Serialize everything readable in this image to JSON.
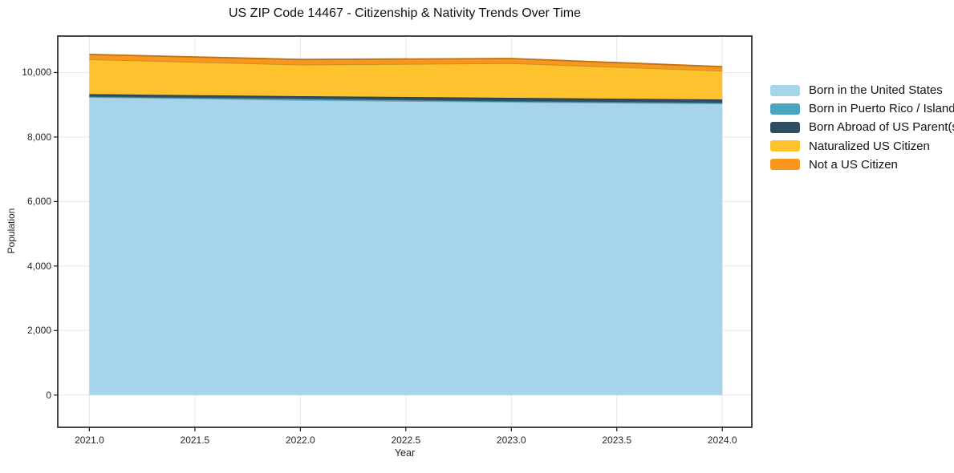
{
  "chart_data": {
    "type": "area",
    "stacked": true,
    "title": "US ZIP Code 14467 - Citizenship & Nativity Trends Over Time",
    "xlabel": "Year",
    "ylabel": "Population",
    "x": [
      2021,
      2022,
      2023,
      2024
    ],
    "series": [
      {
        "name": "Born in the United States",
        "color": "#a6d4ea",
        "values": [
          9240,
          9150,
          9090,
          9040
        ]
      },
      {
        "name": "Born in Puerto Rico / Islands",
        "color": "#4aa6c0",
        "values": [
          15,
          40,
          25,
          25
        ]
      },
      {
        "name": "Born Abroad of US Parent(s)",
        "color": "#2e4d60",
        "values": [
          75,
          75,
          100,
          100
        ]
      },
      {
        "name": "Naturalized US Citizen",
        "color": "#fdc22d",
        "values": [
          1080,
          980,
          1075,
          890
        ]
      },
      {
        "name": "Not a US Citizen",
        "color": "#f8961e",
        "values": [
          150,
          160,
          145,
          125
        ]
      }
    ],
    "totals": [
      10560,
      10405,
      10435,
      10180
    ],
    "xticks": [
      2021.0,
      2021.5,
      2022.0,
      2022.5,
      2023.0,
      2023.5,
      2024.0
    ],
    "xtick_labels": [
      "2021.0",
      "2021.5",
      "2022.0",
      "2022.5",
      "2023.0",
      "2023.5",
      "2024.0"
    ],
    "yticks": [
      0,
      2000,
      4000,
      6000,
      8000,
      10000
    ],
    "ytick_labels": [
      "0",
      "2,000",
      "4,000",
      "6,000",
      "8,000",
      "10,000"
    ],
    "xlim": [
      2020.85,
      2024.14
    ],
    "ylim": [
      -1000,
      11130
    ],
    "grid": true,
    "grid_color": "#e8e8e8",
    "spine_color": "#1a1a1a",
    "background_color": "#ffffff",
    "legend_position": "right"
  }
}
